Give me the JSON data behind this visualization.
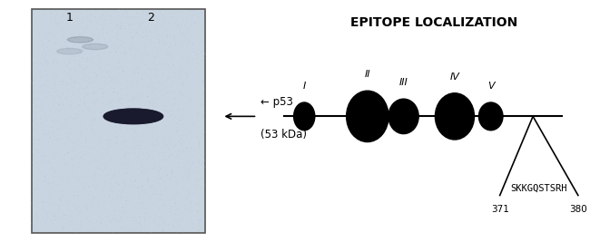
{
  "title": "EPITOPE LOCALIZATION",
  "title_fontsize": 10,
  "title_fontweight": "bold",
  "lane_labels": [
    "1",
    "2"
  ],
  "arrow_label_line1": "← p53",
  "arrow_label_line2": "(53 kDa)",
  "epitope_labels": [
    "I",
    "II",
    "III",
    "IV",
    "V"
  ],
  "label_371": "371",
  "label_380": "380",
  "label_seq": "SKKGQSTSRH",
  "bg_color": "#ffffff",
  "gel_bg": "#c8d4e0",
  "band_color": "#1a1a2e",
  "text_color": "#000000"
}
